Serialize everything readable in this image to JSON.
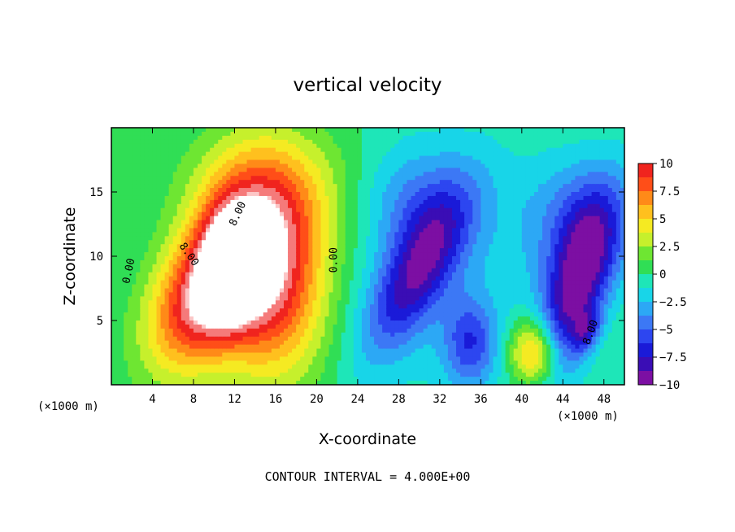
{
  "chart_data": {
    "type": "heatmap",
    "title": "vertical velocity",
    "xlabel": "X-coordinate",
    "ylabel": "Z-coordinate",
    "x_unit_label": "(×1000 m)",
    "y_unit_label": "(×1000 m)",
    "xlim": [
      0,
      50
    ],
    "ylim": [
      0,
      20
    ],
    "x_ticks": [
      4,
      8,
      12,
      16,
      20,
      24,
      28,
      32,
      36,
      40,
      44,
      48
    ],
    "y_ticks": [
      5,
      10,
      15
    ],
    "colorbar": {
      "min": -10,
      "max": 10,
      "tick_values": [
        10,
        7.5,
        5,
        2.5,
        0,
        -2.5,
        -5,
        -7.5,
        -10
      ],
      "tick_labels": [
        "10",
        "7.5",
        "5",
        "2.5",
        "0",
        "−2.5",
        "−5",
        "−7.5",
        "−10"
      ]
    },
    "contour_interval_text": "CONTOUR INTERVAL = 4.000E+00",
    "contour_labels": [
      {
        "text": "0.00",
        "x": 2.0,
        "z": 8.8,
        "angle": -78
      },
      {
        "text": "8.00",
        "x": 7.3,
        "z": 10.0,
        "angle": 55
      },
      {
        "text": "8.00",
        "x": 12.6,
        "z": 13.2,
        "angle": -65
      },
      {
        "text": "0.00",
        "x": 22.0,
        "z": 9.7,
        "angle": -90
      },
      {
        "text": "8.00",
        "x": 47.0,
        "z": 4.0,
        "angle": -70
      }
    ],
    "features": [
      {
        "kind": "updraft",
        "x": 8.8,
        "z": 6.8,
        "peak": 10.5,
        "sx": 3.0,
        "sz": 4.6,
        "angle": 38
      },
      {
        "kind": "updraft",
        "x": 15.2,
        "z": 9.0,
        "peak": 11.2,
        "sx": 3.8,
        "sz": 5.6,
        "angle": -6
      },
      {
        "kind": "updraft",
        "x": 11.5,
        "z": 9.5,
        "peak": 6.0,
        "sx": 2.0,
        "sz": 3.2,
        "angle": 0
      },
      {
        "kind": "updraft",
        "x": 41.3,
        "z": 2.4,
        "peak": 8.5,
        "sx": 1.7,
        "sz": 1.9,
        "angle": 0
      },
      {
        "kind": "updraft",
        "x": 16.5,
        "z": 15.0,
        "peak": 3.5,
        "sx": 6.0,
        "sz": 3.5,
        "angle": 0
      },
      {
        "kind": "downdraft",
        "x": 29.8,
        "z": 8.8,
        "peak": -7.2,
        "sx": 2.1,
        "sz": 5.2,
        "angle": 36
      },
      {
        "kind": "downdraft",
        "x": 45.2,
        "z": 7.2,
        "peak": -8.6,
        "sx": 2.0,
        "sz": 5.5,
        "angle": 22
      },
      {
        "kind": "downdraft",
        "x": 46.3,
        "z": 4.2,
        "peak": -4.0,
        "sx": 0.8,
        "sz": 1.2,
        "angle": 30
      },
      {
        "kind": "downdraft",
        "x": 35.0,
        "z": 3.2,
        "peak": -5.0,
        "sx": 1.8,
        "sz": 2.4,
        "angle": 0
      },
      {
        "kind": "downdraft",
        "x": 45.8,
        "z": 12.5,
        "peak": -4.5,
        "sx": 3.8,
        "sz": 3.6,
        "angle": 0
      },
      {
        "kind": "downdraft",
        "x": 29.5,
        "z": 14.2,
        "peak": -3.0,
        "sx": 4.0,
        "sz": 3.0,
        "angle": 0
      },
      {
        "kind": "downdraft",
        "x": 32.5,
        "z": 9.0,
        "peak": -2.0,
        "sx": 7.0,
        "sz": 8.0,
        "angle": 0
      }
    ]
  }
}
